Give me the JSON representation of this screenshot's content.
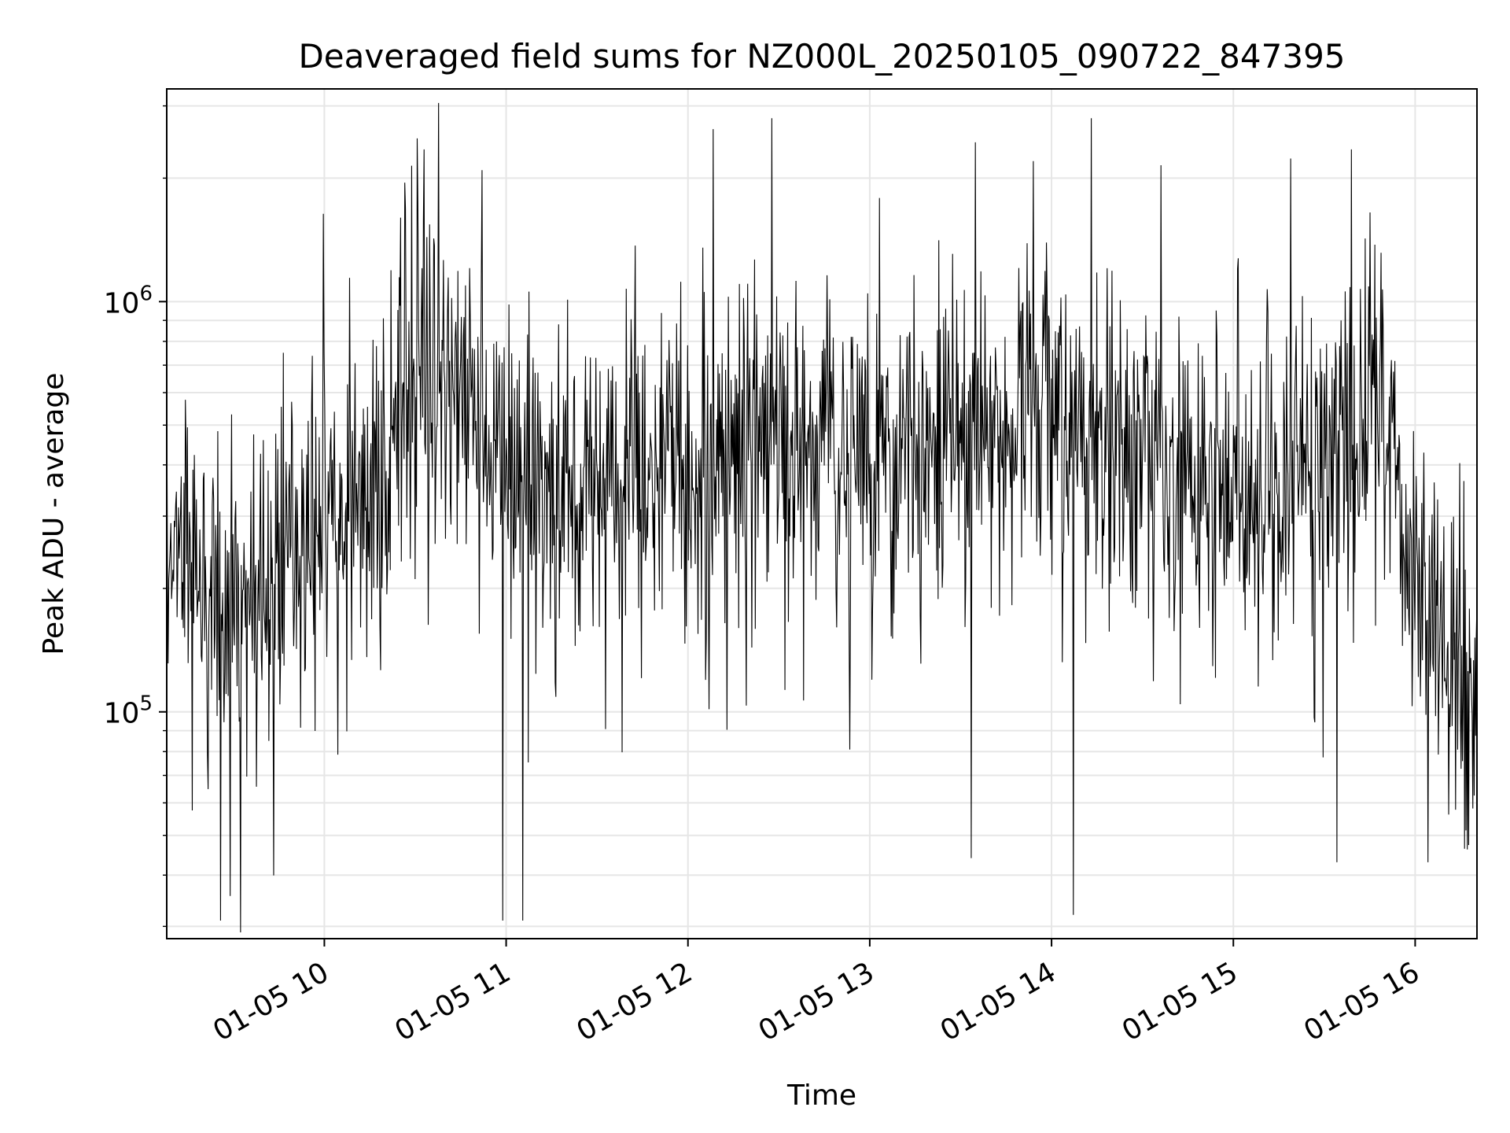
{
  "chart_data": {
    "type": "line",
    "title": "Deaveraged field sums for NZ000L_20250105_090722_847395",
    "xlabel": "Time",
    "ylabel": "Peak ADU - average",
    "xticks": [
      "01-05 10",
      "01-05 11",
      "01-05 12",
      "01-05 13",
      "01-05 14",
      "01-05 15",
      "01-05 16"
    ],
    "xtick_hours": [
      10,
      11,
      12,
      13,
      14,
      15,
      16
    ],
    "xlim_hours": [
      9.133,
      16.34
    ],
    "yscale": "log",
    "ylim": [
      28000,
      3300000
    ],
    "yticks": [
      {
        "base": "10",
        "exp": "5",
        "value": 100000
      },
      {
        "base": "10",
        "exp": "6",
        "value": 1000000
      }
    ],
    "grid": true,
    "line_color": "#000000",
    "series": [
      {
        "name": "",
        "hours": [
          9.133,
          9.5,
          9.9,
          10.3,
          10.6,
          10.8,
          11.0,
          11.3,
          11.6,
          12.0,
          12.4,
          12.8,
          13.2,
          13.6,
          13.9,
          14.2,
          14.5,
          14.8,
          15.1,
          15.4,
          15.7,
          15.85,
          15.95,
          16.1,
          16.34
        ],
        "median": [
          300000,
          170000,
          300000,
          380000,
          700000,
          580000,
          380000,
          330000,
          380000,
          430000,
          450000,
          460000,
          460000,
          500000,
          560000,
          500000,
          420000,
          380000,
          360000,
          400000,
          500000,
          600000,
          250000,
          150000,
          120000
        ],
        "peaks": [
          {
            "hour": 10.51,
            "value": 2500000
          },
          {
            "hour": 10.55,
            "value": 2350000
          },
          {
            "hour": 10.63,
            "value": 3050000
          },
          {
            "hour": 12.46,
            "value": 2800000
          },
          {
            "hour": 13.9,
            "value": 2200000
          },
          {
            "hour": 14.22,
            "value": 2800000
          },
          {
            "hour": 14.6,
            "value": 2150000
          },
          {
            "hour": 15.65,
            "value": 2350000
          },
          {
            "hour": 15.75,
            "value": 1650000
          }
        ],
        "troughs": [
          {
            "hour": 9.54,
            "value": 29000
          },
          {
            "hour": 9.43,
            "value": 31000
          },
          {
            "hour": 10.98,
            "value": 31000
          },
          {
            "hour": 11.09,
            "value": 31000
          },
          {
            "hour": 14.12,
            "value": 32000
          },
          {
            "hour": 13.56,
            "value": 44000
          },
          {
            "hour": 15.57,
            "value": 43000
          },
          {
            "hour": 16.07,
            "value": 43000
          }
        ]
      }
    ]
  }
}
